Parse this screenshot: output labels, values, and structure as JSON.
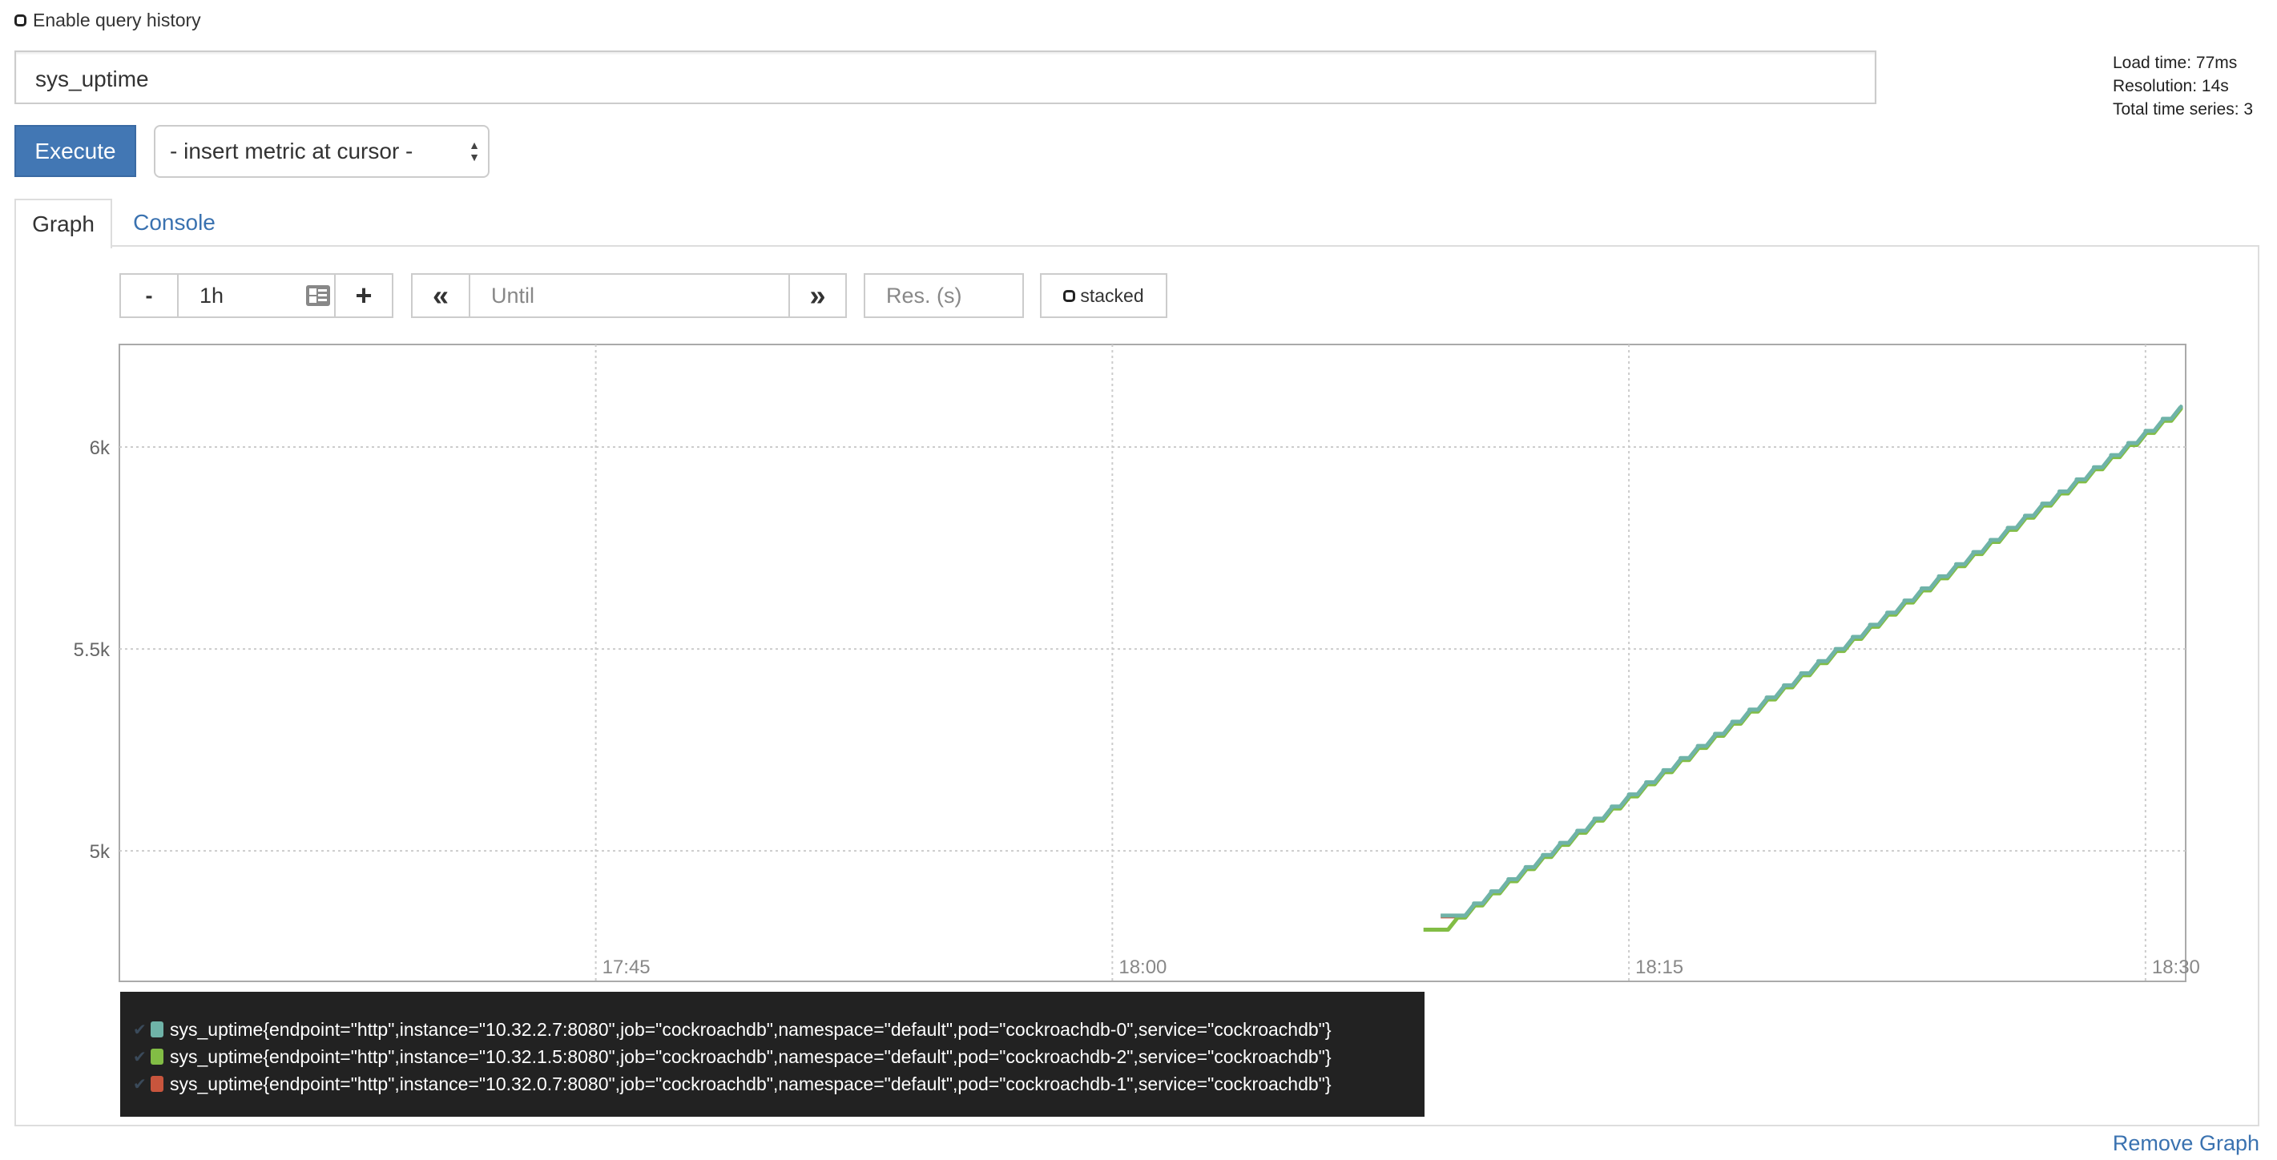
{
  "query_history": {
    "label": "Enable query history",
    "checked": false
  },
  "expression": {
    "value": "sys_uptime"
  },
  "stats": {
    "load_time": "Load time: 77ms",
    "resolution": "Resolution: 14s",
    "total_series": "Total time series: 3"
  },
  "execute_label": "Execute",
  "metric_select": {
    "selected": "- insert metric at cursor -"
  },
  "tabs": [
    {
      "label": "Graph",
      "active": true
    },
    {
      "label": "Console",
      "active": false
    }
  ],
  "controls": {
    "minus": "-",
    "range": "1h",
    "plus": "+",
    "rewind": "«",
    "until_placeholder": "Until",
    "forward": "»",
    "res_placeholder": "Res. (s)",
    "stacked_label": "stacked",
    "stacked": false
  },
  "legend": [
    {
      "label": "sys_uptime{endpoint=\"http\",instance=\"10.32.2.7:8080\",job=\"cockroachdb\",namespace=\"default\",pod=\"cockroachdb-0\",service=\"cockroachdb\"}",
      "color": "#6fb3a8"
    },
    {
      "label": "sys_uptime{endpoint=\"http\",instance=\"10.32.1.5:8080\",job=\"cockroachdb\",namespace=\"default\",pod=\"cockroachdb-2\",service=\"cockroachdb\"}",
      "color": "#82bd45"
    },
    {
      "label": "sys_uptime{endpoint=\"http\",instance=\"10.32.0.7:8080\",job=\"cockroachdb\",namespace=\"default\",pod=\"cockroachdb-1\",service=\"cockroachdb\"}",
      "color": "#c8553d"
    }
  ],
  "remove_graph": "Remove Graph",
  "chart_data": {
    "type": "line",
    "xlim": [
      "17:31:10",
      "18:31:10"
    ],
    "ylim": [
      4677,
      6254
    ],
    "x_ticks": [
      "17:45",
      "18:00",
      "18:15",
      "18:30"
    ],
    "y_ticks": [
      {
        "value": 5000,
        "label": "5k"
      },
      {
        "value": 5500,
        "label": "5.5k"
      },
      {
        "value": 6000,
        "label": "6k"
      }
    ],
    "grid": true,
    "x": [
      "18:09:30",
      "18:10:00",
      "18:10:30",
      "18:11:00",
      "18:11:30",
      "18:12:00",
      "18:12:30",
      "18:13:00",
      "18:13:30",
      "18:14:00",
      "18:14:30",
      "18:15:00",
      "18:15:30",
      "18:16:00",
      "18:16:30",
      "18:17:00",
      "18:17:30",
      "18:18:00",
      "18:18:30",
      "18:19:00",
      "18:19:30",
      "18:20:00",
      "18:20:30",
      "18:21:00",
      "18:21:30",
      "18:22:00",
      "18:22:30",
      "18:23:00",
      "18:23:30",
      "18:24:00",
      "18:24:30",
      "18:25:00",
      "18:25:30",
      "18:26:00",
      "18:26:30",
      "18:27:00",
      "18:27:30",
      "18:28:00",
      "18:28:30",
      "18:29:00",
      "18:29:30",
      "18:30:00",
      "18:30:30",
      "18:31:00"
    ],
    "series": [
      {
        "name": "pod=\"cockroachdb-1\"",
        "color": "#c8553d",
        "values": [
          null,
          4838,
          4868,
          4898,
          4928,
          4958,
          4988,
          5018,
          5048,
          5078,
          5108,
          5138,
          5168,
          5198,
          5228,
          5258,
          5288,
          5318,
          5348,
          5378,
          5408,
          5438,
          5468,
          5498,
          5528,
          5558,
          5588,
          5618,
          5648,
          5678,
          5708,
          5738,
          5768,
          5798,
          5828,
          5858,
          5888,
          5918,
          5948,
          5978,
          6008,
          6038,
          6068,
          6098
        ]
      },
      {
        "name": "pod=\"cockroachdb-2\"",
        "color": "#82bd45",
        "values": [
          4805,
          4835,
          4865,
          4895,
          4925,
          4955,
          4985,
          5015,
          5045,
          5075,
          5105,
          5135,
          5165,
          5195,
          5225,
          5255,
          5285,
          5315,
          5345,
          5375,
          5405,
          5435,
          5465,
          5495,
          5525,
          5555,
          5585,
          5615,
          5645,
          5675,
          5705,
          5735,
          5765,
          5795,
          5825,
          5855,
          5885,
          5915,
          5945,
          5975,
          6005,
          6035,
          6065,
          6095
        ]
      },
      {
        "name": "pod=\"cockroachdb-0\"",
        "color": "#6fb3a8",
        "values": [
          null,
          4840,
          4870,
          4900,
          4930,
          4960,
          4990,
          5020,
          5050,
          5080,
          5110,
          5140,
          5170,
          5200,
          5230,
          5260,
          5290,
          5320,
          5350,
          5380,
          5410,
          5440,
          5470,
          5500,
          5530,
          5560,
          5590,
          5620,
          5650,
          5680,
          5710,
          5740,
          5770,
          5800,
          5830,
          5860,
          5890,
          5920,
          5950,
          5980,
          6010,
          6040,
          6070,
          6100
        ]
      }
    ]
  }
}
